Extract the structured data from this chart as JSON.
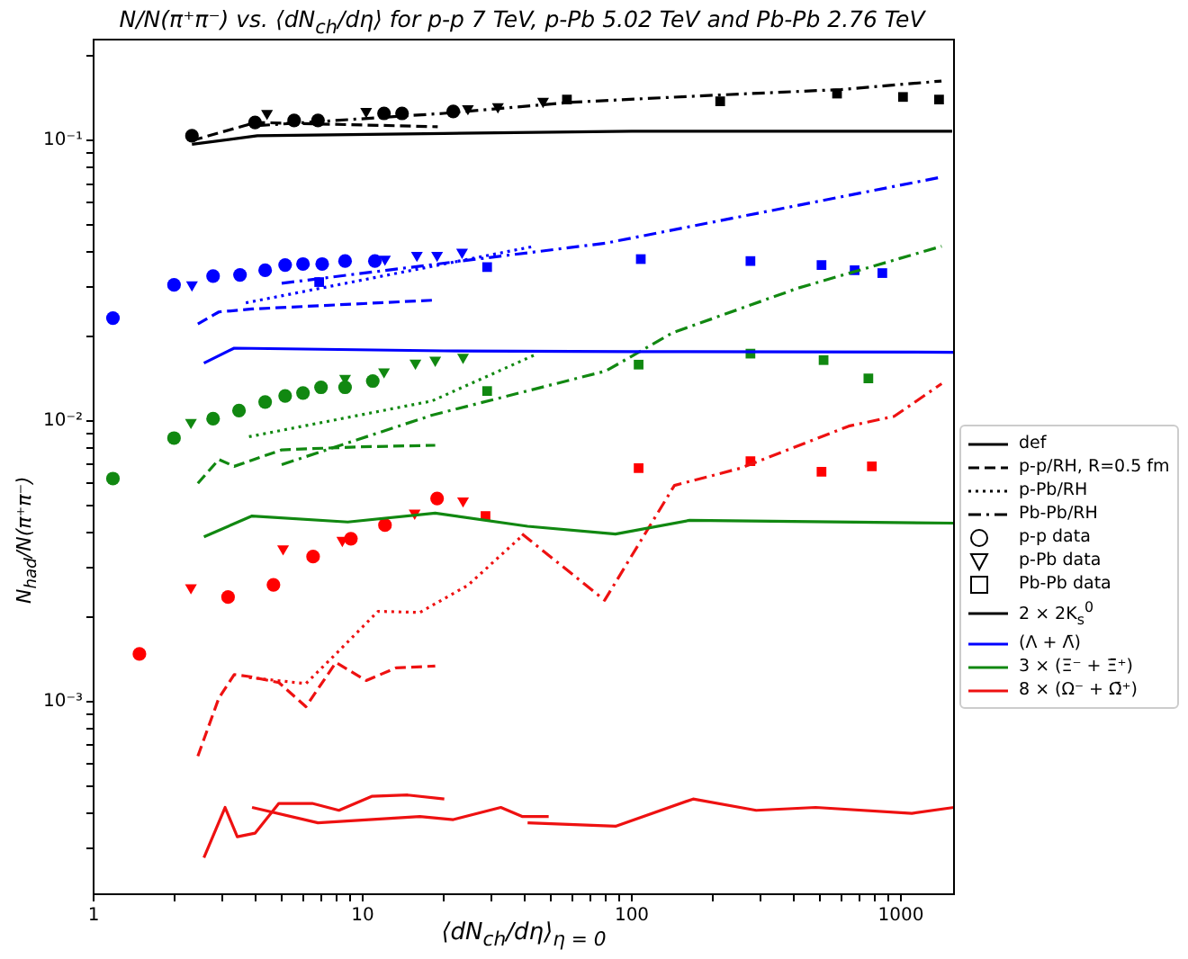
{
  "chart_data": {
    "type": "line",
    "title": "N/N(π⁺π⁻) vs. ⟨dN$_{ch}$/dη⟩ for p-p 7 TeV, p-Pb 5.02 TeV and Pb-Pb 2.76 TeV",
    "xlabel": "⟨dN$_{ch}$/dη⟩$_{η = 0}$",
    "ylabel": "N$_{had}$/N(π⁺π⁻)",
    "log": "xy",
    "grid": false,
    "legend": "right",
    "xlim": [
      1,
      1575
    ],
    "ylim": [
      0.000206,
      0.229
    ],
    "xticks": [
      1,
      {
        "value": 2,
        "label": null
      },
      {
        "value": 3,
        "label": null
      },
      {
        "value": 4,
        "label": null
      },
      {
        "value": 5,
        "label": null
      },
      {
        "value": 6,
        "label": null
      },
      {
        "value": 7,
        "label": null
      },
      {
        "value": 8,
        "label": null
      },
      {
        "value": 9,
        "label": null
      },
      10,
      {
        "value": 20,
        "label": null
      },
      {
        "value": 30,
        "label": null
      },
      {
        "value": 40,
        "label": null
      },
      {
        "value": 50,
        "label": null
      },
      {
        "value": 60,
        "label": null
      },
      {
        "value": 70,
        "label": null
      },
      {
        "value": 80,
        "label": null
      },
      {
        "value": 90,
        "label": null
      },
      100,
      {
        "value": 200,
        "label": null
      },
      {
        "value": 300,
        "label": null
      },
      {
        "value": 400,
        "label": null
      },
      {
        "value": 500,
        "label": null
      },
      {
        "value": 600,
        "label": null
      },
      {
        "value": 700,
        "label": null
      },
      {
        "value": 800,
        "label": null
      },
      {
        "value": 900,
        "label": null
      },
      1000
    ],
    "yticks": [
      {
        "value": 0.0003,
        "label": null
      },
      {
        "value": 0.0004,
        "label": null
      },
      {
        "value": 0.0005,
        "label": null
      },
      {
        "value": 0.0006,
        "label": null
      },
      {
        "value": 0.0007,
        "label": null
      },
      {
        "value": 0.0008,
        "label": null
      },
      {
        "value": 0.0009,
        "label": null
      },
      {
        "value": 0.001,
        "label": "10⁻³"
      },
      {
        "value": 0.002,
        "label": null
      },
      {
        "value": 0.003,
        "label": null
      },
      {
        "value": 0.004,
        "label": null
      },
      {
        "value": 0.005,
        "label": null
      },
      {
        "value": 0.006,
        "label": null
      },
      {
        "value": 0.007,
        "label": null
      },
      {
        "value": 0.008,
        "label": null
      },
      {
        "value": 0.009,
        "label": null
      },
      {
        "value": 0.01,
        "label": "10⁻²"
      },
      {
        "value": 0.02,
        "label": null
      },
      {
        "value": 0.03,
        "label": null
      },
      {
        "value": 0.04,
        "label": null
      },
      {
        "value": 0.05,
        "label": null
      },
      {
        "value": 0.06,
        "label": null
      },
      {
        "value": 0.07,
        "label": null
      },
      {
        "value": 0.08,
        "label": null
      },
      {
        "value": 0.09,
        "label": null
      },
      {
        "value": 0.1,
        "label": "10⁻¹"
      },
      {
        "value": 0.2,
        "label": null
      }
    ],
    "series": [
      {
        "name": "def",
        "line_style": "solid",
        "color": "#000000"
      },
      {
        "name": "p-p/RH, R=0.5 fm",
        "line_style": "dashed",
        "color": "#000000"
      },
      {
        "name": "p-Pb/RH",
        "line_style": "dotted",
        "color": "#000000"
      },
      {
        "name": "Pb-Pb/RH",
        "line_style": "dashdot",
        "color": "#000000"
      },
      {
        "name": "p-p data",
        "type": "scatter",
        "marker": "circle",
        "color": "#000000"
      },
      {
        "name": "p-Pb data",
        "type": "scatter",
        "marker": "triangle",
        "color": "#000000"
      },
      {
        "name": "Pb-Pb data",
        "type": "scatter",
        "marker": "square",
        "color": "#000000"
      },
      {
        "name": "2 × 2K$_{s}$$^{0}$",
        "line_style": "solid",
        "color": "#000000",
        "x": [
          2.32,
          4.06,
          20,
          100,
          1550
        ],
        "values": [
          0.097,
          0.104,
          0.106,
          0.108,
          0.108
        ]
      },
      {
        "name": "(Λ + Λ̄)",
        "line_style": "solid",
        "color": "#0000ff",
        "x": [
          2.57,
          3.33,
          20,
          100,
          1575
        ],
        "values": [
          0.0161,
          0.0182,
          0.0178,
          0.0177,
          0.0176
        ]
      },
      {
        "name": "3 × (Ξ⁻ + Ξ̄⁺)",
        "line_style": "solid",
        "color": "#118811",
        "x": [
          2.57,
          3.88,
          8.8,
          18.6,
          41,
          87,
          164,
          1575
        ],
        "values": [
          0.00387,
          0.00459,
          0.00437,
          0.0047,
          0.00422,
          0.00396,
          0.00443,
          0.00433
        ]
      },
      {
        "name": "8 × (Ω⁻ + Ω̄⁺)",
        "line_style": "solid",
        "color": "#ee1111",
        "x": [
          2.57,
          3.08,
          3.42,
          3.98,
          4.88,
          6.49,
          8.16,
          10.8,
          14.7,
          20.1
        ],
        "values": [
          0.000278,
          0.00042,
          0.00033,
          0.00034,
          0.000434,
          0.000434,
          0.00041,
          0.00046,
          0.000465,
          0.00045
        ]
      },
      {
        "line_style": "solid",
        "color": "#ee1111",
        "x": [
          3.88,
          6.82,
          16.3,
          21.7,
          32.6,
          39.1,
          49.1
        ],
        "values": [
          0.00042,
          0.00037,
          0.00039,
          0.00038,
          0.00042,
          0.00039,
          0.00039
        ]
      },
      {
        "line_style": "solid",
        "color": "#ee1111",
        "x": [
          41,
          87,
          169,
          290,
          482,
          1098,
          1575
        ],
        "values": [
          0.00037,
          0.00036,
          0.00045,
          0.00041,
          0.00042,
          0.0004,
          0.00042
        ]
      },
      {
        "line_style": "dashed",
        "color": "#000000",
        "x": [
          2.32,
          4,
          19
        ],
        "values": [
          0.1,
          0.116,
          0.112
        ]
      },
      {
        "line_style": "dashdot",
        "color": "#000000",
        "x": [
          4.06,
          20,
          60,
          200,
          600,
          1415
        ],
        "values": [
          0.113,
          0.125,
          0.137,
          0.145,
          0.152,
          0.163
        ]
      },
      {
        "line_style": "dashed",
        "color": "#0000ff",
        "x": [
          2.44,
          2.92,
          3.88,
          18.6
        ],
        "values": [
          0.0222,
          0.0245,
          0.0251,
          0.027
        ]
      },
      {
        "line_style": "dotted",
        "color": "#0000ff",
        "x": [
          3.68,
          43.5
        ],
        "values": [
          0.0264,
          0.042
        ]
      },
      {
        "line_style": "dashdot",
        "color": "#0000ff",
        "x": [
          5,
          80.2,
          1417
        ],
        "values": [
          0.031,
          0.0431,
          0.0741
        ]
      },
      {
        "line_style": "dashed",
        "color": "#118811",
        "x": [
          2.44,
          2.92,
          3.33,
          5,
          9.76,
          18.6
        ],
        "values": [
          0.006,
          0.0073,
          0.0069,
          0.0079,
          0.0081,
          0.0082
        ]
      },
      {
        "line_style": "dotted",
        "color": "#118811",
        "x": [
          3.78,
          18.1,
          43.5
        ],
        "values": [
          0.0088,
          0.0118,
          0.0172
        ]
      },
      {
        "line_style": "dashdot",
        "color": "#118811",
        "x": [
          5,
          18.1,
          80.2,
          141,
          415,
          1417
        ],
        "values": [
          0.007,
          0.0105,
          0.0151,
          0.0206,
          0.0298,
          0.042
        ]
      },
      {
        "line_style": "dashed",
        "color": "#ee1111",
        "x": [
          2.44,
          2.92,
          3.33,
          3.78,
          4.88,
          6.15,
          7.95,
          10.3,
          13.3,
          18.6
        ],
        "values": [
          0.00064,
          0.00103,
          0.00125,
          0.00123,
          0.00117,
          0.00096,
          0.00138,
          0.00119,
          0.00132,
          0.00134
        ]
      },
      {
        "line_style": "dotted",
        "color": "#ee1111",
        "x": [
          3.78,
          6.15,
          7.95,
          11.4,
          16.3,
          24.6,
          39.1
        ],
        "values": [
          0.00122,
          0.00116,
          0.00148,
          0.0021,
          0.00208,
          0.0026,
          0.0039
        ]
      },
      {
        "line_style": "dashdot",
        "color": "#ee1111",
        "x": [
          39.1,
          79.3,
          144,
          254,
          640,
          944,
          1417
        ],
        "values": [
          0.00396,
          0.0023,
          0.0059,
          0.0068,
          0.0096,
          0.0104,
          0.0136
        ]
      },
      {
        "type": "scatter",
        "marker": "circle",
        "color": "#000000",
        "x": [
          2.32,
          3.98,
          5.56,
          6.82,
          12,
          14,
          21.7
        ],
        "values": [
          0.104,
          0.116,
          0.118,
          0.118,
          0.125,
          0.125,
          0.127
        ]
      },
      {
        "type": "scatter",
        "marker": "triangle",
        "color": "#000000",
        "x": [
          4.41,
          10.3,
          24.6,
          31.8,
          46.8
        ],
        "values": [
          0.125,
          0.127,
          0.13,
          0.132,
          0.138
        ]
      },
      {
        "type": "scatter",
        "marker": "square",
        "color": "#000000",
        "x": [
          57.4,
          213,
          579,
          1018,
          1386
        ],
        "values": [
          0.14,
          0.138,
          0.147,
          0.143,
          0.14
        ]
      },
      {
        "type": "scatter",
        "marker": "circle",
        "color": "#0000ff",
        "x": [
          1.18,
          1.99,
          2.78,
          3.5,
          4.34,
          5.15,
          6,
          7.07,
          8.6,
          11.1
        ],
        "values": [
          0.0233,
          0.0306,
          0.0329,
          0.0332,
          0.0345,
          0.036,
          0.0363,
          0.0363,
          0.0372,
          0.0372
        ]
      },
      {
        "type": "scatter",
        "marker": "triangle",
        "color": "#0000ff",
        "x": [
          2.32,
          12.1,
          15.9,
          18.9,
          23.4
        ],
        "values": [
          0.0306,
          0.0378,
          0.039,
          0.039,
          0.04
        ]
      },
      {
        "type": "scatter",
        "marker": "square",
        "color": "#0000ff",
        "x": [
          6.89,
          29,
          108,
          276,
          507,
          673,
          853
        ],
        "values": [
          0.0313,
          0.0354,
          0.0378,
          0.0372,
          0.036,
          0.0345,
          0.0337
        ]
      },
      {
        "type": "scatter",
        "marker": "circle",
        "color": "#118811",
        "x": [
          1.18,
          1.99,
          2.78,
          3.47,
          4.34,
          5.15,
          6,
          7,
          8.6,
          10.9
        ],
        "values": [
          0.00624,
          0.0087,
          0.0102,
          0.0109,
          0.0117,
          0.0123,
          0.0126,
          0.0132,
          0.0132,
          0.0139
        ]
      },
      {
        "type": "scatter",
        "marker": "triangle",
        "color": "#118811",
        "x": [
          2.3,
          8.6,
          12,
          15.7,
          18.6,
          23.6
        ],
        "values": [
          0.0099,
          0.0142,
          0.015,
          0.0161,
          0.0165,
          0.0169
        ]
      },
      {
        "type": "scatter",
        "marker": "square",
        "color": "#118811",
        "x": [
          29,
          106,
          276,
          516,
          757
        ],
        "values": [
          0.0128,
          0.0159,
          0.0174,
          0.0165,
          0.0142
        ]
      },
      {
        "type": "scatter",
        "marker": "circle",
        "color": "#ff0000",
        "x": [
          1.48,
          3.16,
          4.66,
          6.54,
          9.04,
          12.1,
          18.9
        ],
        "values": [
          0.00148,
          0.00236,
          0.00261,
          0.00329,
          0.00381,
          0.00426,
          0.0053
        ]
      },
      {
        "type": "scatter",
        "marker": "triangle",
        "color": "#ff0000",
        "x": [
          2.3,
          5.06,
          8.4,
          15.6,
          23.6
        ],
        "values": [
          0.00255,
          0.00351,
          0.00376,
          0.0047,
          0.0052
        ]
      },
      {
        "type": "scatter",
        "marker": "square",
        "color": "#ff0000",
        "x": [
          28.6,
          106,
          276,
          507,
          780
        ],
        "values": [
          0.00459,
          0.0068,
          0.0072,
          0.0066,
          0.0069
        ]
      }
    ]
  }
}
